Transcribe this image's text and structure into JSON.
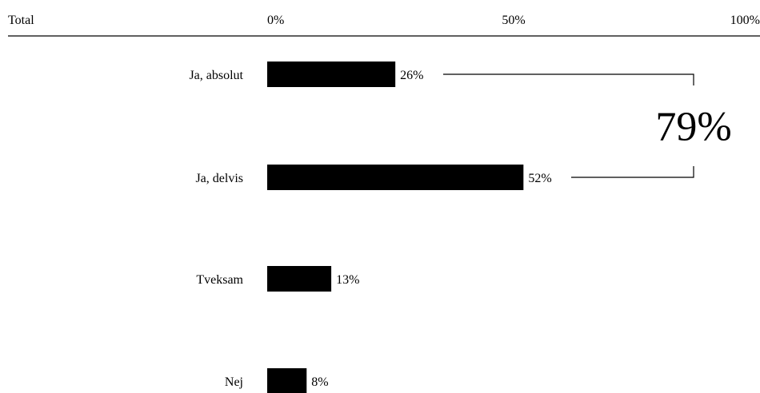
{
  "chart_data": {
    "type": "bar",
    "orientation": "horizontal",
    "group_label": "Total",
    "x_tick_labels": [
      "0%",
      "50%",
      "100%"
    ],
    "x_ticks": [
      0,
      50,
      100
    ],
    "xlim": [
      0,
      100
    ],
    "categories": [
      "Ja, absolut",
      "Ja, delvis",
      "Tveksam",
      "Nej"
    ],
    "values": [
      26,
      52,
      13,
      8
    ],
    "value_labels": [
      "26%",
      "52%",
      "13%",
      "8%"
    ],
    "bar_color": "#000000",
    "annotation": {
      "text": "79%",
      "brackets": [
        "Ja, absolut",
        "Ja, delvis"
      ]
    }
  }
}
